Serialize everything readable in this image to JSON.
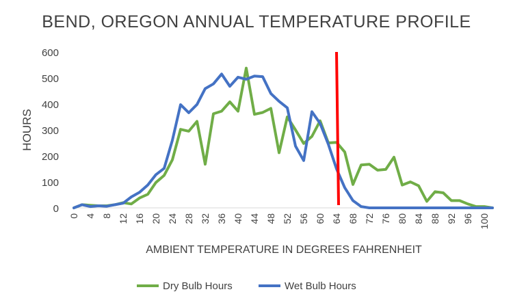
{
  "chart_data": {
    "type": "line",
    "title": "BEND, OREGON ANNUAL TEMPERATURE PROFILE",
    "xlabel": "AMBIENT TEMPERATURE IN DEGREES FAHRENHEIT",
    "ylabel": "HOURS",
    "xlim": [
      0,
      102
    ],
    "ylim": [
      0,
      600
    ],
    "y_ticks": [
      "0",
      "100",
      "200",
      "300",
      "400",
      "500",
      "600"
    ],
    "x_ticks": [
      "0",
      "4",
      "8",
      "12",
      "16",
      "20",
      "24",
      "28",
      "32",
      "36",
      "40",
      "44",
      "48",
      "52",
      "56",
      "60",
      "64",
      "68",
      "72",
      "76",
      "80",
      "84",
      "88",
      "92",
      "96",
      "100"
    ],
    "grid": false,
    "legend_position": "bottom",
    "x": [
      0,
      2,
      4,
      6,
      8,
      10,
      12,
      14,
      16,
      18,
      20,
      22,
      24,
      26,
      28,
      30,
      32,
      34,
      36,
      38,
      40,
      42,
      44,
      46,
      48,
      50,
      52,
      54,
      56,
      58,
      60,
      62,
      64,
      66,
      68,
      70,
      72,
      74,
      76,
      78,
      80,
      82,
      84,
      86,
      88,
      90,
      92,
      94,
      96,
      98,
      100,
      102
    ],
    "series": [
      {
        "name": "Dry Bulb Hours",
        "color": "#70ad47",
        "values": [
          0,
          12,
          10,
          8,
          8,
          12,
          20,
          15,
          38,
          52,
          98,
          125,
          185,
          302,
          295,
          333,
          168,
          362,
          372,
          408,
          372,
          538,
          360,
          367,
          383,
          212,
          350,
          300,
          248,
          275,
          335,
          250,
          252,
          215,
          90,
          165,
          168,
          145,
          148,
          195,
          88,
          100,
          85,
          25,
          62,
          58,
          28,
          28,
          15,
          5,
          5,
          0
        ]
      },
      {
        "name": "Wet Bulb Hours",
        "color": "#4472c4",
        "values": [
          0,
          12,
          5,
          8,
          6,
          12,
          18,
          42,
          60,
          88,
          128,
          152,
          260,
          397,
          366,
          398,
          459,
          477,
          515,
          468,
          503,
          495,
          507,
          505,
          440,
          410,
          385,
          238,
          182,
          370,
          325,
          245,
          150,
          78,
          28,
          5,
          0,
          0,
          0,
          0,
          0,
          0,
          0,
          0,
          0,
          0,
          0,
          0,
          0,
          0,
          0,
          0
        ]
      }
    ],
    "annotations": [
      {
        "type": "vertical-line",
        "x": 64.5,
        "color": "#ff0000"
      }
    ]
  }
}
